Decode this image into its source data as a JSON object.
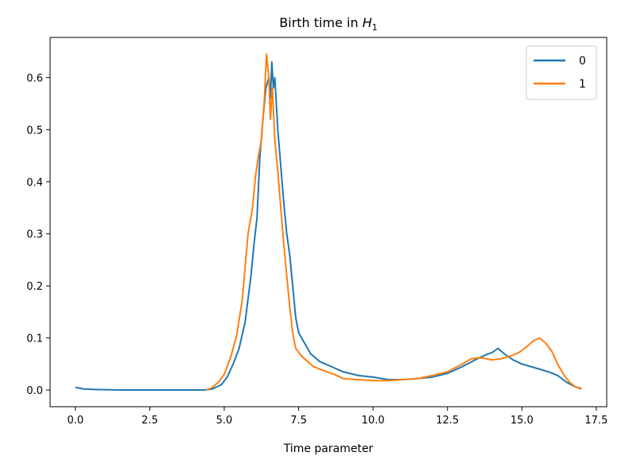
{
  "chart_data": {
    "type": "line",
    "title": "Birth time in H₁",
    "title_parts": {
      "prefix": "Birth time in ",
      "symbol": "H",
      "subscript": "1"
    },
    "xlabel": "Time parameter",
    "ylabel": "",
    "xlim": [
      -0.85,
      17.85
    ],
    "ylim": [
      -0.032,
      0.677
    ],
    "xticks": [
      0.0,
      2.5,
      5.0,
      7.5,
      10.0,
      12.5,
      15.0,
      17.5
    ],
    "xtick_labels": [
      "0.0",
      "2.5",
      "5.0",
      "7.5",
      "10.0",
      "12.5",
      "15.0",
      "17.5"
    ],
    "yticks": [
      0.0,
      0.1,
      0.2,
      0.3,
      0.4,
      0.5,
      0.6
    ],
    "ytick_labels": [
      "0.0",
      "0.1",
      "0.2",
      "0.3",
      "0.4",
      "0.5",
      "0.6"
    ],
    "grid": false,
    "legend_position": "upper right",
    "series": [
      {
        "name": "0",
        "color": "#1f77b4",
        "points": [
          [
            0.0,
            0.005
          ],
          [
            0.3,
            0.002
          ],
          [
            0.7,
            0.001
          ],
          [
            1.5,
            0.0
          ],
          [
            2.5,
            0.0
          ],
          [
            3.5,
            0.0
          ],
          [
            4.3,
            0.0
          ],
          [
            4.6,
            0.002
          ],
          [
            4.9,
            0.01
          ],
          [
            5.1,
            0.025
          ],
          [
            5.3,
            0.05
          ],
          [
            5.5,
            0.08
          ],
          [
            5.7,
            0.13
          ],
          [
            5.9,
            0.22
          ],
          [
            6.0,
            0.28
          ],
          [
            6.1,
            0.33
          ],
          [
            6.2,
            0.45
          ],
          [
            6.3,
            0.52
          ],
          [
            6.4,
            0.58
          ],
          [
            6.5,
            0.6
          ],
          [
            6.55,
            0.56
          ],
          [
            6.6,
            0.63
          ],
          [
            6.65,
            0.58
          ],
          [
            6.7,
            0.6
          ],
          [
            6.8,
            0.5
          ],
          [
            6.9,
            0.43
          ],
          [
            7.0,
            0.36
          ],
          [
            7.1,
            0.3
          ],
          [
            7.2,
            0.26
          ],
          [
            7.3,
            0.2
          ],
          [
            7.4,
            0.14
          ],
          [
            7.5,
            0.11
          ],
          [
            7.7,
            0.09
          ],
          [
            7.9,
            0.07
          ],
          [
            8.2,
            0.055
          ],
          [
            8.6,
            0.045
          ],
          [
            9.0,
            0.035
          ],
          [
            9.5,
            0.028
          ],
          [
            10.0,
            0.025
          ],
          [
            10.5,
            0.02
          ],
          [
            11.0,
            0.02
          ],
          [
            11.5,
            0.022
          ],
          [
            12.0,
            0.025
          ],
          [
            12.5,
            0.032
          ],
          [
            13.0,
            0.045
          ],
          [
            13.5,
            0.06
          ],
          [
            13.8,
            0.068
          ],
          [
            14.0,
            0.072
          ],
          [
            14.2,
            0.08
          ],
          [
            14.4,
            0.07
          ],
          [
            14.7,
            0.058
          ],
          [
            15.0,
            0.05
          ],
          [
            15.3,
            0.045
          ],
          [
            15.6,
            0.04
          ],
          [
            15.9,
            0.035
          ],
          [
            16.2,
            0.028
          ],
          [
            16.5,
            0.015
          ],
          [
            16.8,
            0.006
          ],
          [
            17.0,
            0.003
          ]
        ]
      },
      {
        "name": "1",
        "color": "#ff7f0e",
        "points": [
          [
            4.4,
            0.0
          ],
          [
            4.6,
            0.005
          ],
          [
            4.8,
            0.015
          ],
          [
            5.0,
            0.03
          ],
          [
            5.2,
            0.06
          ],
          [
            5.4,
            0.1
          ],
          [
            5.6,
            0.17
          ],
          [
            5.8,
            0.3
          ],
          [
            5.95,
            0.35
          ],
          [
            6.05,
            0.41
          ],
          [
            6.15,
            0.45
          ],
          [
            6.25,
            0.48
          ],
          [
            6.35,
            0.56
          ],
          [
            6.42,
            0.645
          ],
          [
            6.5,
            0.6
          ],
          [
            6.55,
            0.52
          ],
          [
            6.62,
            0.58
          ],
          [
            6.7,
            0.48
          ],
          [
            6.8,
            0.42
          ],
          [
            6.9,
            0.35
          ],
          [
            7.0,
            0.28
          ],
          [
            7.1,
            0.22
          ],
          [
            7.2,
            0.16
          ],
          [
            7.3,
            0.11
          ],
          [
            7.4,
            0.08
          ],
          [
            7.6,
            0.065
          ],
          [
            7.8,
            0.055
          ],
          [
            8.0,
            0.045
          ],
          [
            8.3,
            0.038
          ],
          [
            8.7,
            0.03
          ],
          [
            9.0,
            0.022
          ],
          [
            9.5,
            0.02
          ],
          [
            10.0,
            0.018
          ],
          [
            10.5,
            0.018
          ],
          [
            11.0,
            0.02
          ],
          [
            11.5,
            0.022
          ],
          [
            12.0,
            0.028
          ],
          [
            12.5,
            0.035
          ],
          [
            13.0,
            0.05
          ],
          [
            13.3,
            0.06
          ],
          [
            13.6,
            0.062
          ],
          [
            14.0,
            0.058
          ],
          [
            14.3,
            0.06
          ],
          [
            14.6,
            0.065
          ],
          [
            14.9,
            0.072
          ],
          [
            15.2,
            0.085
          ],
          [
            15.4,
            0.095
          ],
          [
            15.6,
            0.1
          ],
          [
            15.8,
            0.09
          ],
          [
            16.0,
            0.075
          ],
          [
            16.2,
            0.05
          ],
          [
            16.4,
            0.03
          ],
          [
            16.6,
            0.015
          ],
          [
            16.8,
            0.006
          ],
          [
            17.0,
            0.002
          ]
        ]
      }
    ]
  }
}
